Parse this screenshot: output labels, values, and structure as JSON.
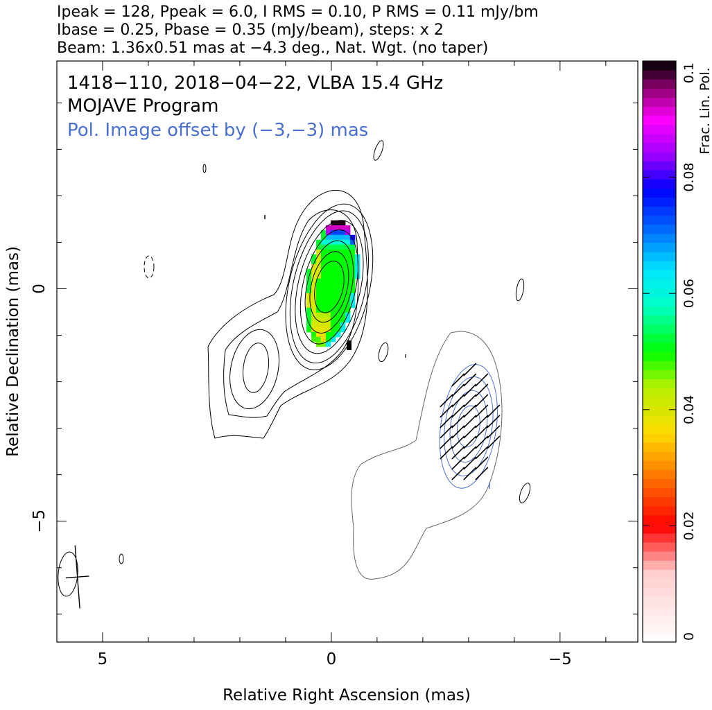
{
  "header": {
    "line1": "Ipeak = 128, Ppeak = 6.0, I RMS = 0.10, P RMS = 0.11 mJy/bm",
    "line2": "Ibase = 0.25, Pbase = 0.35 (mJy/beam), steps: x 2",
    "line3": "Beam: 1.36x0.51 mas at −4.3 deg., Nat. Wgt. (no taper)"
  },
  "colors": {
    "intensity_contour": "#000000",
    "polarization_contour": "#4a6fd0",
    "offset_note": "#4a6fd0",
    "faint_contour": "#666666"
  },
  "chart_data": {
    "type": "contour",
    "annotations": [
      "1418−110, 2018−04−22, VLBA 15.4 GHz",
      "MOJAVE Program",
      "Pol. Image offset by (−3,−3) mas"
    ],
    "xlabel": "Relative Right Ascension (mas)",
    "ylabel": "Relative Declination (mas)",
    "xlim": [
      6.0,
      -6.7
    ],
    "ylim": [
      -7.6,
      4.9
    ],
    "x_ticks": [
      {
        "value": 5,
        "label": "5"
      },
      {
        "value": 0,
        "label": "0"
      },
      {
        "value": -5,
        "label": "−5"
      }
    ],
    "y_ticks": [
      {
        "value": 0,
        "label": "0"
      },
      {
        "value": -5,
        "label": "−5"
      }
    ],
    "colorbar": {
      "label": "Frac. Lin. Pol.",
      "range": [
        0,
        0.1
      ],
      "ticks": [
        {
          "value": 0,
          "label": "0"
        },
        {
          "value": 0.02,
          "label": "0.02"
        },
        {
          "value": 0.04,
          "label": "0.04"
        },
        {
          "value": 0.06,
          "label": "0.06"
        },
        {
          "value": 0.08,
          "label": "0.08"
        },
        {
          "value": 0.1,
          "label": "0.1"
        }
      ]
    },
    "core": {
      "ra": 0.0,
      "dec": 0.1
    },
    "jet_component": {
      "ra": 1.65,
      "dec": -1.7
    },
    "beam": {
      "major_mas": 1.36,
      "minor_mas": 0.51,
      "pa_deg": -4.3,
      "ra": 5.55,
      "dec": -6.2
    },
    "polarization_offset_mas": [
      -3,
      -3
    ],
    "ipeak_mjy": 128,
    "ppeak_mjy": 6.0,
    "ibase_mjy": 0.25,
    "pbase_mjy": 0.35,
    "contour_step": 2
  }
}
